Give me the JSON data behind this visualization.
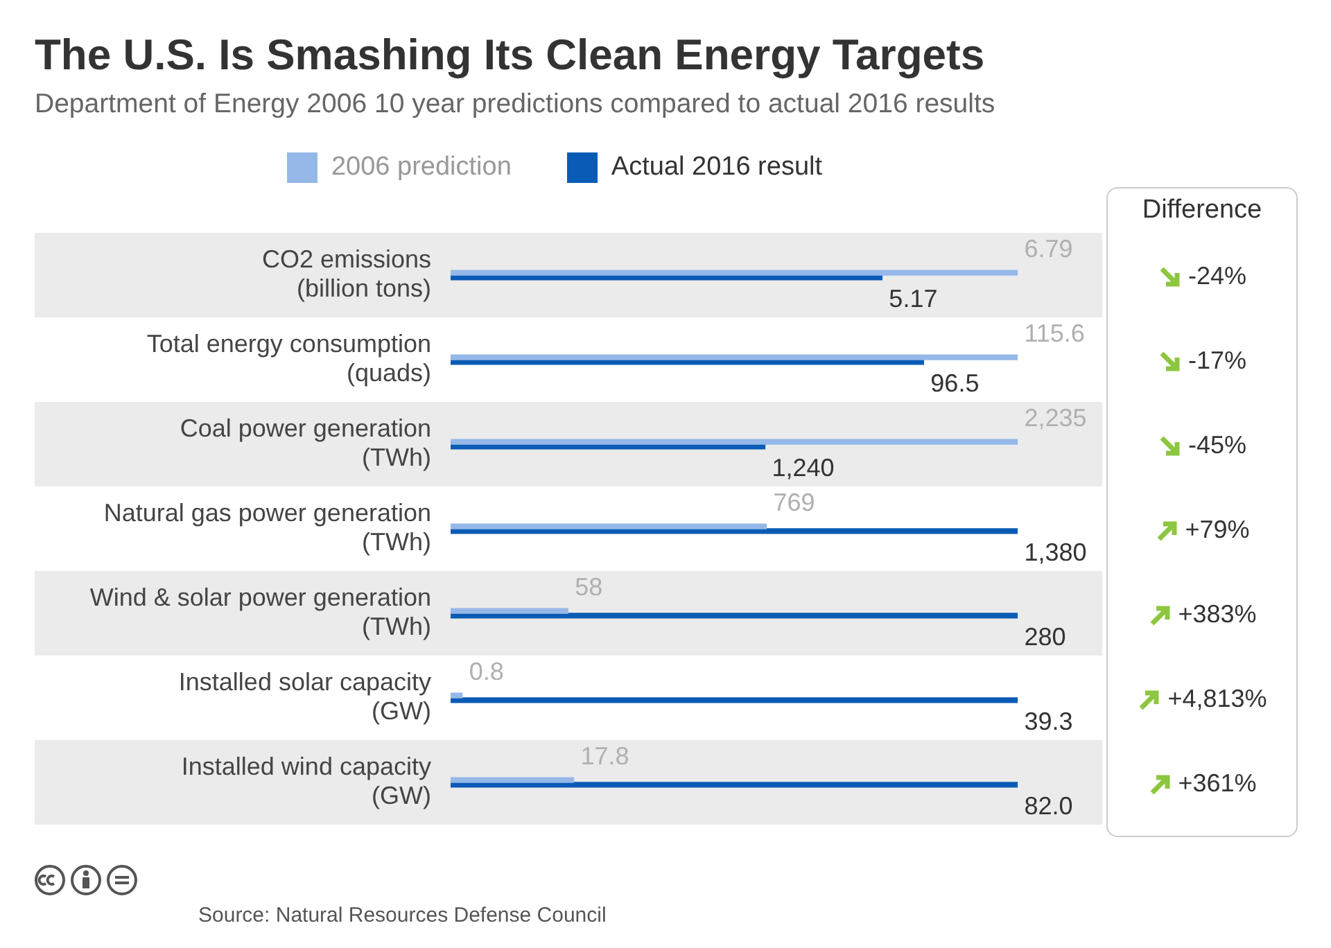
{
  "chart_data": [
    {
      "type": "bar",
      "orientation": "horizontal",
      "title": "The U.S. Is Smashing Its Clean Energy Targets",
      "subtitle": "Department of Energy 2006 10 year predictions compared to actual 2016 results",
      "annotations": [
        "Source: Natural Resources Defense Council"
      ],
      "legend": "top",
      "tick_labels": "y",
      "categories": [
        "CO2 emissions\n(billion tons)"
      ],
      "series": [
        {
          "name": "2006 prediction",
          "color": "#95b8e8",
          "values": [
            6.79
          ],
          "value_labels": [
            "6.79"
          ]
        },
        {
          "name": "Actual 2016 result",
          "color": "#0a5bb5",
          "values": [
            5.17
          ],
          "value_labels": [
            "5.17"
          ]
        }
      ]
    },
    {
      "type": "bar",
      "orientation": "horizontal",
      "tick_labels": "y",
      "categories": [
        "Total energy consumption\n(quads)"
      ],
      "series": [
        {
          "color": "#95b8e8",
          "values": [
            115.6
          ],
          "value_labels": [
            "115.6"
          ]
        },
        {
          "color": "#0a5bb5",
          "values": [
            96.5
          ],
          "value_labels": [
            "96.5"
          ]
        }
      ]
    },
    {
      "type": "bar",
      "orientation": "horizontal",
      "tick_labels": "y",
      "categories": [
        "Coal power generation\n(TWh)"
      ],
      "series": [
        {
          "color": "#95b8e8",
          "values": [
            2235
          ],
          "value_labels": [
            "2,235"
          ]
        },
        {
          "color": "#0a5bb5",
          "values": [
            1240
          ],
          "value_labels": [
            "1,240"
          ]
        }
      ]
    },
    {
      "type": "bar",
      "orientation": "horizontal",
      "tick_labels": "y",
      "categories": [
        "Natural gas power generation\n(TWh)"
      ],
      "series": [
        {
          "color": "#95b8e8",
          "values": [
            769
          ],
          "value_labels": [
            "769"
          ]
        },
        {
          "color": "#0a5bb5",
          "values": [
            1380
          ],
          "value_labels": [
            "1,380"
          ]
        }
      ]
    },
    {
      "type": "bar",
      "orientation": "horizontal",
      "tick_labels": "y",
      "categories": [
        "Wind & solar power generation\n(TWh)"
      ],
      "series": [
        {
          "color": "#95b8e8",
          "values": [
            58
          ],
          "value_labels": [
            "58"
          ]
        },
        {
          "color": "#0a5bb5",
          "values": [
            280
          ],
          "value_labels": [
            "280"
          ]
        }
      ]
    },
    {
      "type": "bar",
      "orientation": "horizontal",
      "tick_labels": "y",
      "categories": [
        "Installed solar capacity\n(GW)"
      ],
      "series": [
        {
          "color": "#95b8e8",
          "values": [
            0.8
          ],
          "value_labels": [
            "0.8"
          ]
        },
        {
          "color": "#0a5bb5",
          "values": [
            39.3
          ],
          "value_labels": [
            "39.3"
          ]
        }
      ]
    },
    {
      "type": "bar",
      "orientation": "horizontal",
      "tick_labels": "y",
      "categories": [
        "Installed wind capacity\n(GW)"
      ],
      "series": [
        {
          "color": "#95b8e8",
          "values": [
            17.8
          ],
          "value_labels": [
            "17.8"
          ]
        },
        {
          "color": "#0a5bb5",
          "values": [
            82.0
          ],
          "value_labels": [
            "82.0"
          ]
        }
      ]
    },
    {
      "type": "other",
      "title": "Difference",
      "values": [
        -24,
        -17,
        -45,
        79,
        383,
        4813,
        361
      ],
      "value_labels": [
        "-24%",
        "-17%",
        "-45%",
        "+79%",
        "+383%",
        "+4,813%",
        "+361%"
      ]
    }
  ]
}
